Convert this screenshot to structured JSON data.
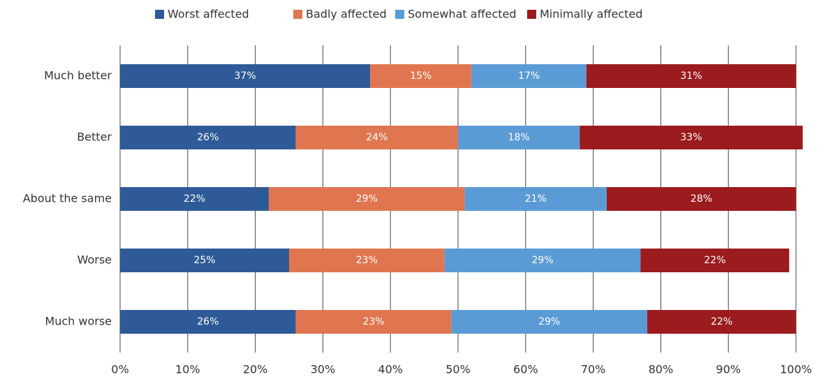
{
  "chart_data": {
    "type": "stacked-bar-horizontal",
    "categories": [
      "Much better",
      "Better",
      "About the same",
      "Worse",
      "Much worse"
    ],
    "series": [
      {
        "name": "Worst affected",
        "color": "#2e5a97",
        "values": [
          37,
          26,
          22,
          25,
          26
        ],
        "value_labels": [
          "37%",
          "26%",
          "22%",
          "25%",
          "26%"
        ]
      },
      {
        "name": "Badly affected",
        "color": "#e07650",
        "values": [
          15,
          24,
          29,
          23,
          23
        ],
        "value_labels": [
          "15%",
          "24%",
          "29%",
          "23%",
          "23%"
        ]
      },
      {
        "name": "Somewhat affected",
        "color": "#5b9bd5",
        "values": [
          17,
          18,
          21,
          29,
          29
        ],
        "value_labels": [
          "17%",
          "18%",
          "21%",
          "29%",
          "29%"
        ]
      },
      {
        "name": "Minimally affected",
        "color": "#9b1b1e",
        "values": [
          31,
          33,
          28,
          22,
          22
        ],
        "value_labels": [
          "31%",
          "33%",
          "28%",
          "22%",
          "22%"
        ]
      }
    ],
    "xlim": [
      0,
      100
    ],
    "xticks": [
      {
        "value": 0,
        "label": "0%"
      },
      {
        "value": 10,
        "label": "10%"
      },
      {
        "value": 20,
        "label": "20%"
      },
      {
        "value": 30,
        "label": "30%"
      },
      {
        "value": 40,
        "label": "40%"
      },
      {
        "value": 50,
        "label": "50%"
      },
      {
        "value": 60,
        "label": "60%"
      },
      {
        "value": 70,
        "label": "70%"
      },
      {
        "value": 80,
        "label": "80%"
      },
      {
        "value": 90,
        "label": "90%"
      },
      {
        "value": 100,
        "label": "100%"
      }
    ],
    "grid": true,
    "legend": "top"
  }
}
